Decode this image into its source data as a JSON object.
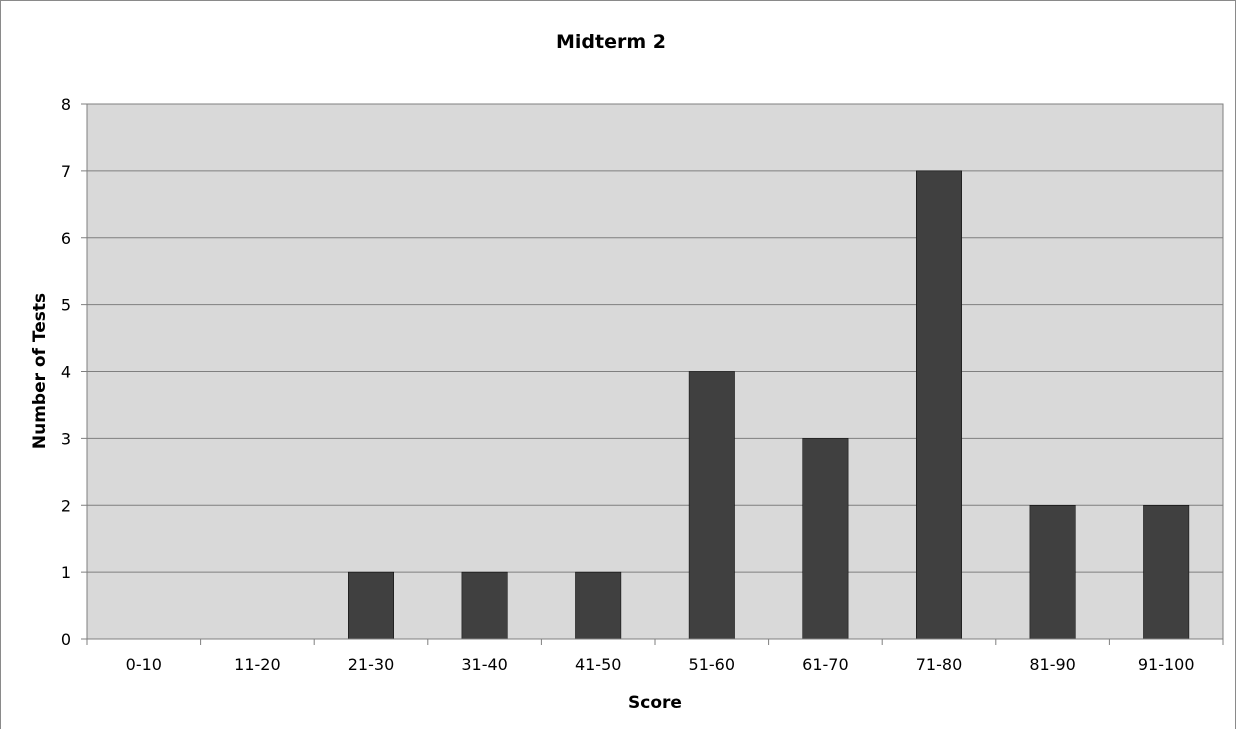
{
  "chart_data": {
    "type": "bar",
    "title": "Midterm 2",
    "xlabel": "Score",
    "ylabel": "Number of Tests",
    "categories": [
      "0-10",
      "11-20",
      "21-30",
      "31-40",
      "41-50",
      "51-60",
      "61-70",
      "71-80",
      "81-90",
      "91-100"
    ],
    "values": [
      0,
      0,
      1,
      1,
      1,
      4,
      3,
      7,
      2,
      2
    ],
    "ylim": [
      0,
      8
    ],
    "yticks": [
      "0",
      "1",
      "2",
      "3",
      "4",
      "5",
      "6",
      "7",
      "8"
    ],
    "grid": true,
    "legend": "none",
    "colors": {
      "bar": "#404040",
      "plot_background": "#d9d9d9",
      "gridline": "#7f7f7f",
      "axis": "#7f7f7f"
    }
  }
}
